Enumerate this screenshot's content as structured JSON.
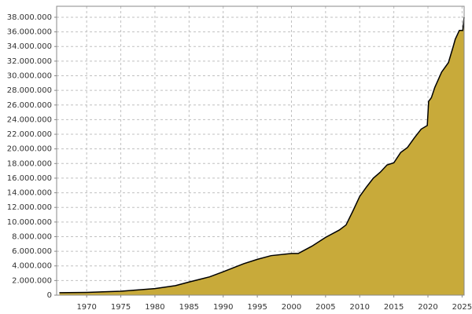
{
  "chart_data": {
    "type": "area",
    "x": [
      1966,
      1970,
      1975,
      1980,
      1983,
      1985,
      1988,
      1990,
      1993,
      1995,
      1997,
      2000,
      2001,
      2003,
      2005,
      2007,
      2008,
      2009,
      2010,
      2011,
      2012,
      2013,
      2014,
      2015,
      2016,
      2017,
      2018,
      2019,
      2019.9,
      2020.1,
      2020.5,
      2021,
      2022,
      2023,
      2023.7,
      2024,
      2024.6,
      2025.1,
      2025.3
    ],
    "series": [
      {
        "color": "#c8aa3a",
        "line_color": "#000000",
        "values": [
          330000,
          380000,
          540000,
          900000,
          1300000,
          1800000,
          2500000,
          3200000,
          4300000,
          4900000,
          5400000,
          5700000,
          5700000,
          6700000,
          7900000,
          8900000,
          9600000,
          11500000,
          13500000,
          14800000,
          16000000,
          16800000,
          17800000,
          18100000,
          19500000,
          20200000,
          21500000,
          22700000,
          23200000,
          26500000,
          27000000,
          28400000,
          30500000,
          31800000,
          34000000,
          35000000,
          36200000,
          36200000,
          38000000
        ]
      }
    ],
    "xlim": [
      1965.6,
      2025.3
    ],
    "xticks": [
      1970,
      1975,
      1980,
      1985,
      1990,
      1995,
      2000,
      2005,
      2010,
      2015,
      2020,
      2025
    ],
    "ylim": [
      0,
      39500000
    ],
    "yticks": [
      0,
      {
        "value": 2000000,
        "label": "2.000.000"
      },
      {
        "value": 4000000,
        "label": "4.000.000"
      },
      {
        "value": 6000000,
        "label": "6.000.000"
      },
      {
        "value": 8000000,
        "label": "8.000.000"
      },
      {
        "value": 10000000,
        "label": "10.000.000"
      },
      {
        "value": 12000000,
        "label": "12.000.000"
      },
      {
        "value": 14000000,
        "label": "14.000.000"
      },
      {
        "value": 16000000,
        "label": "16.000.000"
      },
      {
        "value": 18000000,
        "label": "18.000.000"
      },
      {
        "value": 20000000,
        "label": "20.000.000"
      },
      {
        "value": 22000000,
        "label": "22.000.000"
      },
      {
        "value": 24000000,
        "label": "24.000.000"
      },
      {
        "value": 26000000,
        "label": "26.000.000"
      },
      {
        "value": 28000000,
        "label": "28.000.000"
      },
      {
        "value": 30000000,
        "label": "30.000.000"
      },
      {
        "value": 32000000,
        "label": "32.000.000"
      },
      {
        "value": 34000000,
        "label": "34.000.000"
      },
      {
        "value": 36000000,
        "label": "36.000.000"
      },
      {
        "value": 38000000,
        "label": "38.000.000"
      }
    ],
    "grid": true
  }
}
